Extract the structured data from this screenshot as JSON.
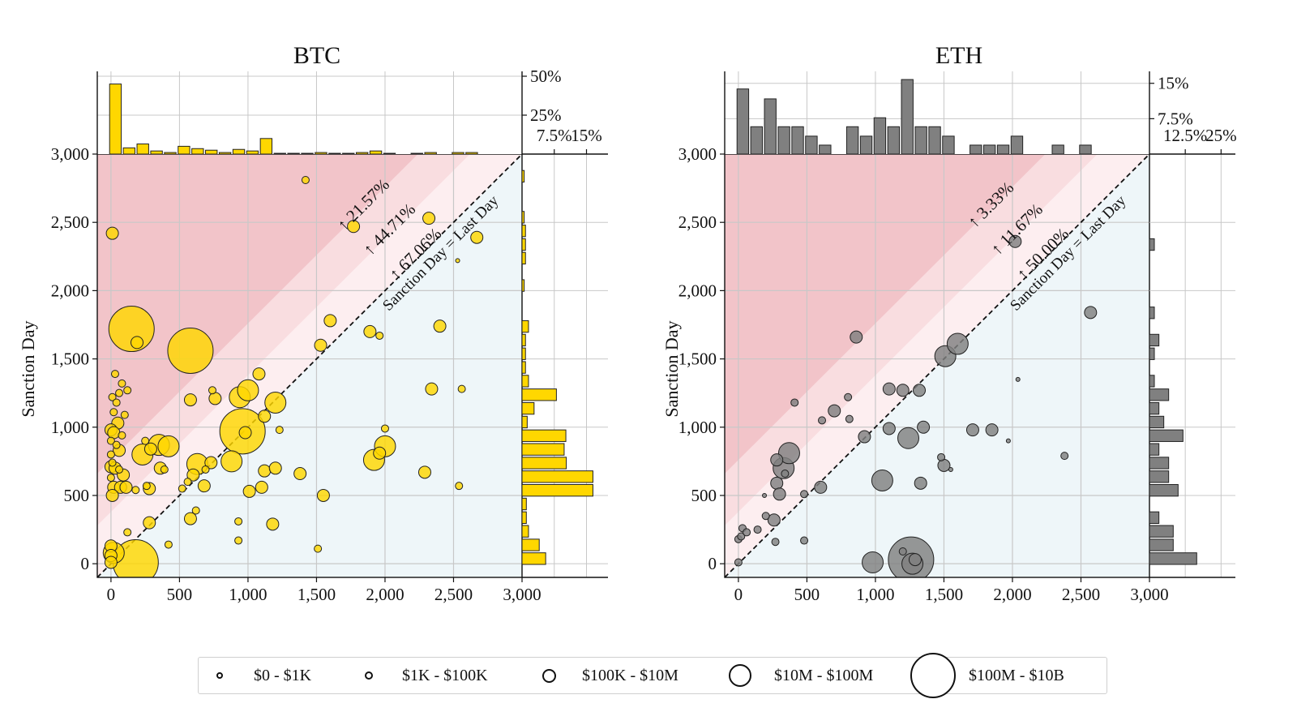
{
  "colors": {
    "btc_fill": "#FFD700",
    "eth_fill": "#808080",
    "region_pink": "#f2c4c9",
    "region_pink_light": "#f9dde0",
    "region_pink_lighter": "#fdeef0",
    "region_blue": "#eef6f9",
    "grid": "#c8c8c8"
  },
  "chart_data": [
    {
      "type": "scatter",
      "title": "BTC",
      "xlabel": "",
      "ylabel": "Sanction Day",
      "xlim": [
        -100,
        3000
      ],
      "ylim": [
        -100,
        3000
      ],
      "xticks": [
        "0",
        "500",
        "1,000",
        "1,500",
        "2,000",
        "2,500",
        "3,000"
      ],
      "yticks": [
        "0",
        "500",
        "1,000",
        "1,500",
        "2,000",
        "2,500",
        "3,000"
      ],
      "top_hist_ticks": [
        "50%",
        "25%"
      ],
      "right_hist_ticks": [
        "7.5%",
        "15%"
      ],
      "diagonal_label": "Sanction Day = Last Day",
      "band_labels": [
        "↑ 21.57%",
        "↑ 44.71%",
        "↑ 67.06%"
      ],
      "points": [
        {
          "x": 10,
          "y": 2420,
          "tier": 3
        },
        {
          "x": 150,
          "y": 1720,
          "tier": 5
        },
        {
          "x": 190,
          "y": 1620,
          "tier": 3
        },
        {
          "x": 580,
          "y": 1560,
          "tier": 5
        },
        {
          "x": 30,
          "y": 1390,
          "tier": 2
        },
        {
          "x": 80,
          "y": 1320,
          "tier": 2
        },
        {
          "x": 60,
          "y": 1250,
          "tier": 2
        },
        {
          "x": 120,
          "y": 1270,
          "tier": 2
        },
        {
          "x": 10,
          "y": 1220,
          "tier": 2
        },
        {
          "x": 40,
          "y": 1180,
          "tier": 2
        },
        {
          "x": 20,
          "y": 1110,
          "tier": 2
        },
        {
          "x": 100,
          "y": 1090,
          "tier": 2
        },
        {
          "x": 50,
          "y": 1030,
          "tier": 3
        },
        {
          "x": 0,
          "y": 980,
          "tier": 3
        },
        {
          "x": 20,
          "y": 960,
          "tier": 3
        },
        {
          "x": 80,
          "y": 940,
          "tier": 2
        },
        {
          "x": 0,
          "y": 900,
          "tier": 2
        },
        {
          "x": 40,
          "y": 870,
          "tier": 2
        },
        {
          "x": 60,
          "y": 830,
          "tier": 3
        },
        {
          "x": 0,
          "y": 800,
          "tier": 2
        },
        {
          "x": 10,
          "y": 740,
          "tier": 2
        },
        {
          "x": 0,
          "y": 710,
          "tier": 3
        },
        {
          "x": 30,
          "y": 700,
          "tier": 3
        },
        {
          "x": 60,
          "y": 690,
          "tier": 2
        },
        {
          "x": 90,
          "y": 650,
          "tier": 3
        },
        {
          "x": 0,
          "y": 630,
          "tier": 2
        },
        {
          "x": 20,
          "y": 560,
          "tier": 3
        },
        {
          "x": 70,
          "y": 560,
          "tier": 3
        },
        {
          "x": 110,
          "y": 560,
          "tier": 3
        },
        {
          "x": 10,
          "y": 500,
          "tier": 3
        },
        {
          "x": 0,
          "y": 130,
          "tier": 3
        },
        {
          "x": 0,
          "y": 60,
          "tier": 3
        },
        {
          "x": 0,
          "y": 10,
          "tier": 3
        },
        {
          "x": 20,
          "y": 80,
          "tier": 4
        },
        {
          "x": 180,
          "y": 10,
          "tier": 5
        },
        {
          "x": 120,
          "y": 230,
          "tier": 2
        },
        {
          "x": 230,
          "y": 800,
          "tier": 4
        },
        {
          "x": 290,
          "y": 840,
          "tier": 3
        },
        {
          "x": 250,
          "y": 900,
          "tier": 2
        },
        {
          "x": 350,
          "y": 870,
          "tier": 4
        },
        {
          "x": 420,
          "y": 860,
          "tier": 4
        },
        {
          "x": 360,
          "y": 700,
          "tier": 3
        },
        {
          "x": 390,
          "y": 690,
          "tier": 2
        },
        {
          "x": 260,
          "y": 570,
          "tier": 2
        },
        {
          "x": 280,
          "y": 550,
          "tier": 3
        },
        {
          "x": 180,
          "y": 540,
          "tier": 2
        },
        {
          "x": 280,
          "y": 300,
          "tier": 3
        },
        {
          "x": 420,
          "y": 140,
          "tier": 2
        },
        {
          "x": 580,
          "y": 330,
          "tier": 3
        },
        {
          "x": 620,
          "y": 390,
          "tier": 2
        },
        {
          "x": 580,
          "y": 1200,
          "tier": 3
        },
        {
          "x": 740,
          "y": 1270,
          "tier": 2
        },
        {
          "x": 760,
          "y": 1210,
          "tier": 3
        },
        {
          "x": 630,
          "y": 730,
          "tier": 4
        },
        {
          "x": 600,
          "y": 650,
          "tier": 3
        },
        {
          "x": 690,
          "y": 690,
          "tier": 2
        },
        {
          "x": 730,
          "y": 740,
          "tier": 3
        },
        {
          "x": 520,
          "y": 550,
          "tier": 2
        },
        {
          "x": 560,
          "y": 600,
          "tier": 2
        },
        {
          "x": 680,
          "y": 570,
          "tier": 3
        },
        {
          "x": 880,
          "y": 750,
          "tier": 4
        },
        {
          "x": 940,
          "y": 1220,
          "tier": 4
        },
        {
          "x": 1000,
          "y": 1270,
          "tier": 4
        },
        {
          "x": 1080,
          "y": 1390,
          "tier": 3
        },
        {
          "x": 1200,
          "y": 1180,
          "tier": 4
        },
        {
          "x": 960,
          "y": 970,
          "tier": 5
        },
        {
          "x": 980,
          "y": 960,
          "tier": 3
        },
        {
          "x": 1120,
          "y": 1080,
          "tier": 3
        },
        {
          "x": 1230,
          "y": 980,
          "tier": 2
        },
        {
          "x": 1010,
          "y": 530,
          "tier": 3
        },
        {
          "x": 1100,
          "y": 560,
          "tier": 3
        },
        {
          "x": 1120,
          "y": 680,
          "tier": 3
        },
        {
          "x": 1200,
          "y": 700,
          "tier": 3
        },
        {
          "x": 930,
          "y": 310,
          "tier": 2
        },
        {
          "x": 930,
          "y": 170,
          "tier": 2
        },
        {
          "x": 1180,
          "y": 290,
          "tier": 3
        },
        {
          "x": 1420,
          "y": 2810,
          "tier": 2
        },
        {
          "x": 1600,
          "y": 1780,
          "tier": 3
        },
        {
          "x": 1530,
          "y": 1600,
          "tier": 3
        },
        {
          "x": 1380,
          "y": 660,
          "tier": 3
        },
        {
          "x": 1550,
          "y": 500,
          "tier": 3
        },
        {
          "x": 1510,
          "y": 110,
          "tier": 2
        },
        {
          "x": 1770,
          "y": 2470,
          "tier": 3
        },
        {
          "x": 1890,
          "y": 1700,
          "tier": 3
        },
        {
          "x": 1960,
          "y": 1670,
          "tier": 2
        },
        {
          "x": 1920,
          "y": 760,
          "tier": 4
        },
        {
          "x": 1960,
          "y": 810,
          "tier": 3
        },
        {
          "x": 2000,
          "y": 860,
          "tier": 4
        },
        {
          "x": 2000,
          "y": 990,
          "tier": 2
        },
        {
          "x": 2320,
          "y": 2530,
          "tier": 3
        },
        {
          "x": 2400,
          "y": 1740,
          "tier": 3
        },
        {
          "x": 2340,
          "y": 1280,
          "tier": 3
        },
        {
          "x": 2290,
          "y": 670,
          "tier": 3
        },
        {
          "x": 2530,
          "y": 2220,
          "tier": 1
        },
        {
          "x": 2560,
          "y": 1280,
          "tier": 2
        },
        {
          "x": 2540,
          "y": 570,
          "tier": 2
        },
        {
          "x": 2670,
          "y": 2390,
          "tier": 3
        }
      ],
      "top_hist": [
        {
          "x": 0,
          "pct": 45.0
        },
        {
          "x": 100,
          "pct": 4.0
        },
        {
          "x": 200,
          "pct": 6.5
        },
        {
          "x": 300,
          "pct": 2.0
        },
        {
          "x": 400,
          "pct": 1.0
        },
        {
          "x": 500,
          "pct": 5.0
        },
        {
          "x": 600,
          "pct": 3.5
        },
        {
          "x": 700,
          "pct": 2.5
        },
        {
          "x": 800,
          "pct": 1.0
        },
        {
          "x": 900,
          "pct": 3.0
        },
        {
          "x": 1000,
          "pct": 2.0
        },
        {
          "x": 1100,
          "pct": 10.0
        },
        {
          "x": 1200,
          "pct": 0.5
        },
        {
          "x": 1300,
          "pct": 0.5
        },
        {
          "x": 1400,
          "pct": 0.5
        },
        {
          "x": 1500,
          "pct": 1.0
        },
        {
          "x": 1600,
          "pct": 0.5
        },
        {
          "x": 1700,
          "pct": 0.5
        },
        {
          "x": 1800,
          "pct": 1.0
        },
        {
          "x": 1900,
          "pct": 2.0
        },
        {
          "x": 2000,
          "pct": 0.5
        },
        {
          "x": 2200,
          "pct": 0.5
        },
        {
          "x": 2300,
          "pct": 1.0
        },
        {
          "x": 2500,
          "pct": 1.0
        },
        {
          "x": 2600,
          "pct": 1.0
        }
      ],
      "right_hist": [
        {
          "y": 0,
          "pct": 5.5
        },
        {
          "y": 100,
          "pct": 4.0
        },
        {
          "y": 200,
          "pct": 1.5
        },
        {
          "y": 300,
          "pct": 1.0
        },
        {
          "y": 400,
          "pct": 1.0
        },
        {
          "y": 500,
          "pct": 16.5
        },
        {
          "y": 600,
          "pct": 16.5
        },
        {
          "y": 700,
          "pct": 10.3
        },
        {
          "y": 800,
          "pct": 9.8
        },
        {
          "y": 900,
          "pct": 10.2
        },
        {
          "y": 1000,
          "pct": 1.2
        },
        {
          "y": 1100,
          "pct": 2.8
        },
        {
          "y": 1200,
          "pct": 8.0
        },
        {
          "y": 1300,
          "pct": 1.5
        },
        {
          "y": 1400,
          "pct": 0.8
        },
        {
          "y": 1500,
          "pct": 0.8
        },
        {
          "y": 1600,
          "pct": 0.8
        },
        {
          "y": 1700,
          "pct": 1.5
        },
        {
          "y": 2000,
          "pct": 0.5
        },
        {
          "y": 2200,
          "pct": 0.8
        },
        {
          "y": 2300,
          "pct": 0.8
        },
        {
          "y": 2400,
          "pct": 0.8
        },
        {
          "y": 2500,
          "pct": 0.5
        },
        {
          "y": 2800,
          "pct": 0.5
        }
      ]
    },
    {
      "type": "scatter",
      "title": "ETH",
      "xlabel": "",
      "ylabel": "Sanction Day",
      "xlim": [
        -100,
        3000
      ],
      "ylim": [
        -100,
        3000
      ],
      "xticks": [
        "0",
        "500",
        "1,000",
        "1,500",
        "2,000",
        "2,500",
        "3,000"
      ],
      "yticks": [
        "0",
        "500",
        "1,000",
        "1,500",
        "2,000",
        "2,500",
        "3,000"
      ],
      "top_hist_ticks": [
        "15%",
        "7.5%"
      ],
      "right_hist_ticks": [
        "12.5%",
        "25%"
      ],
      "diagonal_label": "Sanction Day = Last Day",
      "band_labels": [
        "↑ 3.33%",
        "↑ 11.67%",
        "↑ 50.00%"
      ],
      "points": [
        {
          "x": 0,
          "y": 10,
          "tier": 2
        },
        {
          "x": 0,
          "y": 180,
          "tier": 2
        },
        {
          "x": 20,
          "y": 200,
          "tier": 2
        },
        {
          "x": 30,
          "y": 260,
          "tier": 2
        },
        {
          "x": 60,
          "y": 230,
          "tier": 2
        },
        {
          "x": 140,
          "y": 250,
          "tier": 2
        },
        {
          "x": 200,
          "y": 350,
          "tier": 2
        },
        {
          "x": 190,
          "y": 500,
          "tier": 1
        },
        {
          "x": 280,
          "y": 590,
          "tier": 3
        },
        {
          "x": 300,
          "y": 510,
          "tier": 3
        },
        {
          "x": 260,
          "y": 320,
          "tier": 3
        },
        {
          "x": 270,
          "y": 160,
          "tier": 2
        },
        {
          "x": 340,
          "y": 660,
          "tier": 2
        },
        {
          "x": 330,
          "y": 700,
          "tier": 4
        },
        {
          "x": 370,
          "y": 810,
          "tier": 4
        },
        {
          "x": 280,
          "y": 760,
          "tier": 3
        },
        {
          "x": 410,
          "y": 1180,
          "tier": 2
        },
        {
          "x": 480,
          "y": 510,
          "tier": 2
        },
        {
          "x": 480,
          "y": 170,
          "tier": 2
        },
        {
          "x": 600,
          "y": 560,
          "tier": 3
        },
        {
          "x": 610,
          "y": 1050,
          "tier": 2
        },
        {
          "x": 700,
          "y": 1120,
          "tier": 3
        },
        {
          "x": 800,
          "y": 1220,
          "tier": 2
        },
        {
          "x": 810,
          "y": 1060,
          "tier": 2
        },
        {
          "x": 860,
          "y": 1660,
          "tier": 3
        },
        {
          "x": 920,
          "y": 930,
          "tier": 3
        },
        {
          "x": 980,
          "y": 10,
          "tier": 4
        },
        {
          "x": 1050,
          "y": 610,
          "tier": 4
        },
        {
          "x": 1100,
          "y": 1280,
          "tier": 3
        },
        {
          "x": 1100,
          "y": 990,
          "tier": 3
        },
        {
          "x": 1200,
          "y": 1270,
          "tier": 3
        },
        {
          "x": 1240,
          "y": 920,
          "tier": 4
        },
        {
          "x": 1320,
          "y": 1270,
          "tier": 3
        },
        {
          "x": 1350,
          "y": 1000,
          "tier": 3
        },
        {
          "x": 1330,
          "y": 590,
          "tier": 3
        },
        {
          "x": 1260,
          "y": 30,
          "tier": 5
        },
        {
          "x": 1270,
          "y": 0,
          "tier": 4
        },
        {
          "x": 1290,
          "y": 30,
          "tier": 3
        },
        {
          "x": 1200,
          "y": 90,
          "tier": 2
        },
        {
          "x": 1510,
          "y": 1520,
          "tier": 4
        },
        {
          "x": 1600,
          "y": 1610,
          "tier": 4
        },
        {
          "x": 1480,
          "y": 780,
          "tier": 2
        },
        {
          "x": 1500,
          "y": 720,
          "tier": 3
        },
        {
          "x": 1550,
          "y": 690,
          "tier": 1
        },
        {
          "x": 1710,
          "y": 980,
          "tier": 3
        },
        {
          "x": 1850,
          "y": 980,
          "tier": 3
        },
        {
          "x": 1970,
          "y": 900,
          "tier": 1
        },
        {
          "x": 2020,
          "y": 2360,
          "tier": 3
        },
        {
          "x": 2040,
          "y": 1350,
          "tier": 1
        },
        {
          "x": 2380,
          "y": 790,
          "tier": 2
        },
        {
          "x": 2570,
          "y": 1840,
          "tier": 3
        }
      ],
      "top_hist": [
        {
          "x": 0,
          "pct": 13.8
        },
        {
          "x": 100,
          "pct": 5.8
        },
        {
          "x": 200,
          "pct": 11.7
        },
        {
          "x": 300,
          "pct": 5.8
        },
        {
          "x": 400,
          "pct": 5.8
        },
        {
          "x": 500,
          "pct": 3.8
        },
        {
          "x": 600,
          "pct": 1.9
        },
        {
          "x": 800,
          "pct": 5.8
        },
        {
          "x": 900,
          "pct": 3.8
        },
        {
          "x": 1000,
          "pct": 7.7
        },
        {
          "x": 1100,
          "pct": 5.8
        },
        {
          "x": 1200,
          "pct": 15.8
        },
        {
          "x": 1300,
          "pct": 5.8
        },
        {
          "x": 1400,
          "pct": 5.8
        },
        {
          "x": 1500,
          "pct": 3.8
        },
        {
          "x": 1700,
          "pct": 1.9
        },
        {
          "x": 1800,
          "pct": 1.9
        },
        {
          "x": 1900,
          "pct": 1.9
        },
        {
          "x": 2000,
          "pct": 3.8
        },
        {
          "x": 2300,
          "pct": 1.9
        },
        {
          "x": 2500,
          "pct": 1.9
        }
      ],
      "right_hist": [
        {
          "y": 0,
          "pct": 16.5
        },
        {
          "y": 100,
          "pct": 8.3
        },
        {
          "y": 200,
          "pct": 8.3
        },
        {
          "y": 300,
          "pct": 3.3
        },
        {
          "y": 500,
          "pct": 10.0
        },
        {
          "y": 600,
          "pct": 6.7
        },
        {
          "y": 700,
          "pct": 6.7
        },
        {
          "y": 800,
          "pct": 3.3
        },
        {
          "y": 900,
          "pct": 11.7
        },
        {
          "y": 1000,
          "pct": 5.0
        },
        {
          "y": 1100,
          "pct": 3.3
        },
        {
          "y": 1200,
          "pct": 6.7
        },
        {
          "y": 1300,
          "pct": 1.7
        },
        {
          "y": 1500,
          "pct": 1.7
        },
        {
          "y": 1600,
          "pct": 3.3
        },
        {
          "y": 1800,
          "pct": 1.7
        },
        {
          "y": 2300,
          "pct": 1.7
        }
      ]
    }
  ],
  "legend": {
    "items": [
      {
        "label": "$0 - $1K"
      },
      {
        "label": "$1K - $100K"
      },
      {
        "label": "$100K - $10M"
      },
      {
        "label": "$10M - $100M"
      },
      {
        "label": "$100M - $10B"
      }
    ]
  }
}
